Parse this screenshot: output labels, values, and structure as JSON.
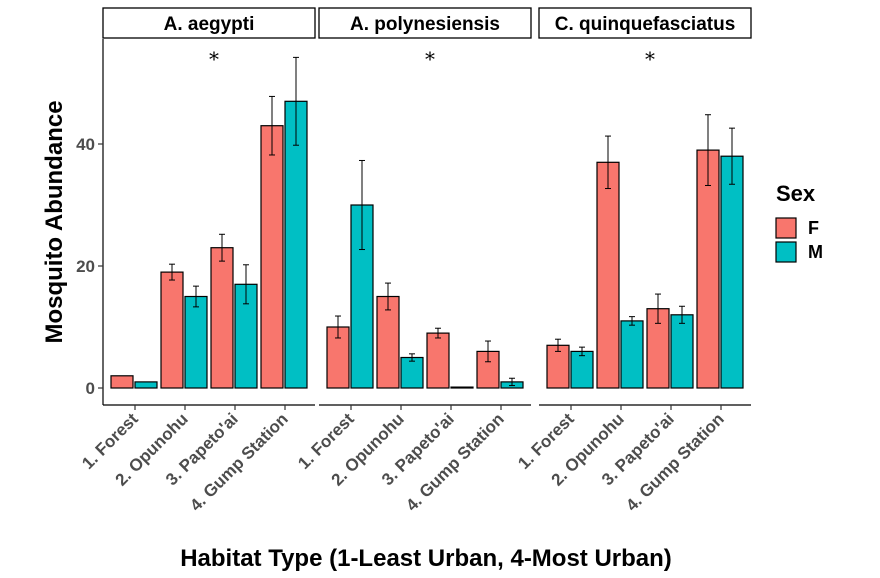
{
  "chart_data": {
    "type": "bar",
    "facets": [
      "A. aegypti",
      "A. polynesiensis",
      "C. quinquefasciatus"
    ],
    "categories": [
      "1. Forest",
      "2. Opunohu",
      "3. Papeto'ai",
      "4. Gump Station"
    ],
    "xlabel": "Habitat Type (1-Least Urban, 4-Most Urban)",
    "ylabel": "Mosquito Abundance",
    "ylim": [
      -2,
      57
    ],
    "yticks": [
      0,
      20,
      40
    ],
    "legend": {
      "title": "Sex",
      "position": "right",
      "entries": [
        "F",
        "M"
      ]
    },
    "colors": {
      "F": "#F8766D",
      "M": "#00BFC4"
    },
    "significance_marker": "*",
    "series": [
      {
        "name": "F",
        "panels": [
          {
            "values": [
              2,
              19,
              23,
              43
            ],
            "errors": [
              0,
              1.3,
              2.2,
              4.8
            ]
          },
          {
            "values": [
              10,
              15,
              9,
              6
            ],
            "errors": [
              1.8,
              2.2,
              0.8,
              1.7
            ]
          },
          {
            "values": [
              7,
              37,
              13,
              39
            ],
            "errors": [
              1.0,
              4.3,
              2.4,
              5.8
            ]
          }
        ]
      },
      {
        "name": "M",
        "panels": [
          {
            "values": [
              1,
              15,
              17,
              47
            ],
            "errors": [
              0,
              1.7,
              3.2,
              7.2
            ]
          },
          {
            "values": [
              30,
              5,
              0.15,
              1
            ],
            "errors": [
              7.3,
              0.6,
              0,
              0.6
            ]
          },
          {
            "values": [
              6,
              11,
              12,
              38
            ],
            "errors": [
              0.7,
              0.7,
              1.4,
              4.6
            ]
          }
        ]
      }
    ]
  }
}
